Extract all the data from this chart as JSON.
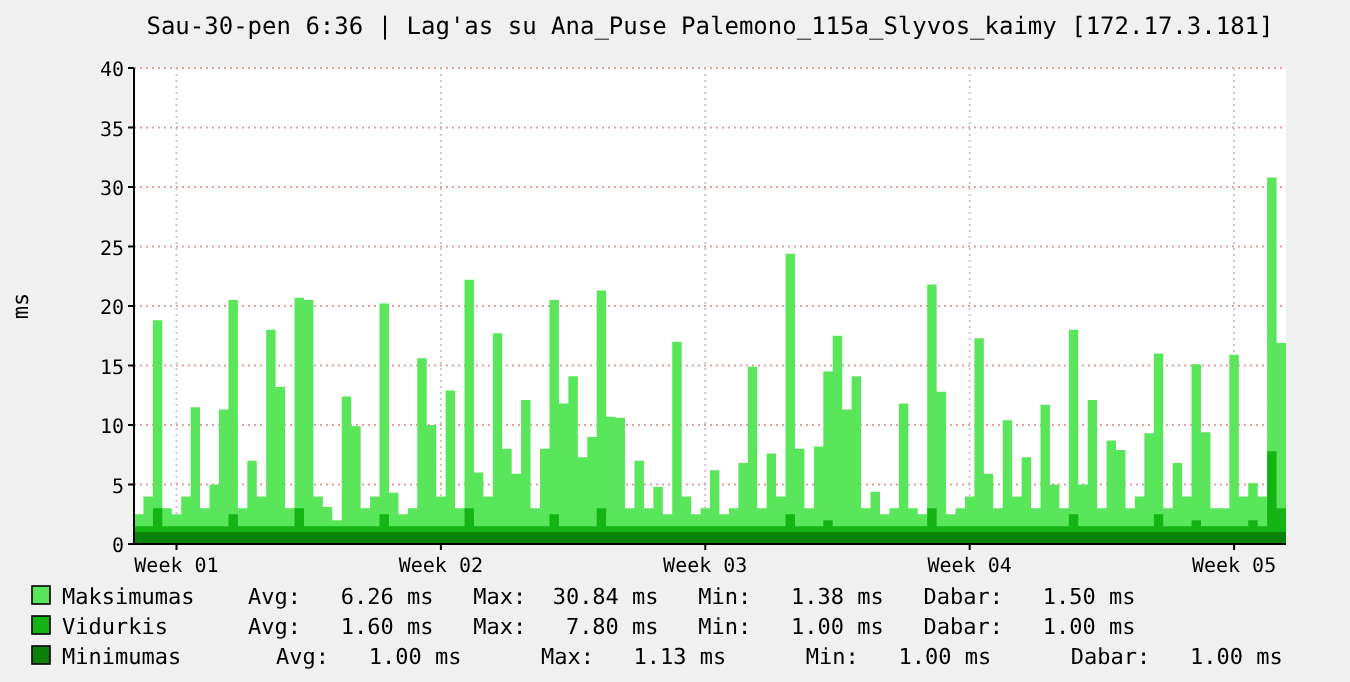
{
  "chart_data": {
    "type": "area",
    "title": "Sau-30-pen 6:36 | Lag'as su Ana_Puse Palemono_115a_Slyvos_kaimy [172.17.3.181]",
    "ylabel": "ms",
    "categories": [
      null,
      null,
      null,
      null,
      "Week 01",
      null,
      null,
      null,
      null,
      null,
      null,
      null,
      null,
      null,
      null,
      null,
      null,
      null,
      null,
      null,
      null,
      null,
      null,
      null,
      null,
      null,
      null,
      null,
      null,
      null,
      null,
      null,
      "Week 02",
      null,
      null,
      null,
      null,
      null,
      null,
      null,
      null,
      null,
      null,
      null,
      null,
      null,
      null,
      null,
      null,
      null,
      null,
      null,
      null,
      null,
      null,
      null,
      null,
      null,
      null,
      null,
      "Week 03",
      null,
      null,
      null,
      null,
      null,
      null,
      null,
      null,
      null,
      null,
      null,
      null,
      null,
      null,
      null,
      null,
      null,
      null,
      null,
      null,
      null,
      null,
      null,
      null,
      null,
      null,
      null,
      "Week 04",
      null,
      null,
      null,
      null,
      null,
      null,
      null,
      null,
      null,
      null,
      null,
      null,
      null,
      null,
      null,
      null,
      null,
      null,
      null,
      null,
      null,
      null,
      null,
      null,
      null,
      null,
      null,
      "Week 05",
      null,
      null,
      null,
      null,
      null
    ],
    "ylim": [
      0,
      40
    ],
    "yticks": [
      0,
      5,
      10,
      15,
      20,
      25,
      30,
      35,
      40
    ],
    "grid": true,
    "legend": "bottom",
    "series": [
      {
        "name": "Maksimumas",
        "color": "#5ae65a",
        "values": [
          2.5,
          4,
          18.8,
          3,
          2.5,
          4,
          11.5,
          3,
          5,
          11.3,
          20.5,
          3,
          7,
          4,
          18,
          13.2,
          3,
          20.7,
          20.5,
          4,
          3.1,
          2,
          12.4,
          9.9,
          3,
          4,
          20.2,
          4.3,
          2.5,
          3,
          15.6,
          10,
          4,
          12.9,
          3,
          22.2,
          6,
          4,
          17.7,
          8,
          5.9,
          12.1,
          3,
          8,
          20.5,
          11.8,
          14.1,
          7.3,
          9,
          21.3,
          10.7,
          10.6,
          3,
          7,
          3,
          4.8,
          2.5,
          17,
          4,
          2.5,
          3,
          6.2,
          2.5,
          3,
          6.8,
          14.9,
          3,
          7.6,
          4,
          24.4,
          8,
          3,
          8.2,
          14.5,
          17.5,
          11.3,
          14.1,
          3,
          4.4,
          2.5,
          3,
          11.8,
          3,
          2.5,
          21.8,
          12.8,
          2.5,
          3,
          4,
          17.3,
          5.9,
          3,
          10.4,
          4,
          7.3,
          3,
          11.7,
          5,
          3,
          18,
          5,
          12.1,
          3,
          8.7,
          7.9,
          3,
          4,
          9.3,
          16,
          3,
          6.8,
          4,
          15.1,
          9.4,
          3,
          3,
          15.9,
          4,
          5.1,
          4,
          30.8,
          16.9
        ]
      },
      {
        "name": "Vidurkis",
        "color": "#14b414",
        "values": [
          1.5,
          1.5,
          3,
          1.5,
          1.5,
          1.5,
          1.5,
          1.5,
          1.5,
          1.5,
          2.5,
          1.5,
          1.5,
          1.5,
          1.5,
          1.5,
          1.5,
          3,
          1.5,
          1.5,
          1.5,
          1.5,
          1.5,
          1.5,
          1.5,
          1.5,
          2.5,
          1.5,
          1.5,
          1.5,
          1.5,
          1.5,
          1.5,
          1.5,
          1.5,
          3,
          1.5,
          1.5,
          1.5,
          1.5,
          1.5,
          1.5,
          1.5,
          1.5,
          2.5,
          1.5,
          1.5,
          1.5,
          1.5,
          3,
          1.5,
          1.5,
          1.5,
          1.5,
          1.5,
          1.5,
          1.5,
          1.5,
          1.5,
          1.5,
          1.5,
          1.5,
          1.5,
          1.5,
          1.5,
          1.5,
          1.5,
          1.5,
          1.5,
          2.5,
          1.5,
          1.5,
          1.5,
          2,
          1.5,
          1.5,
          1.5,
          1.5,
          1.5,
          1.5,
          1.5,
          1.5,
          1.5,
          1.5,
          3,
          1.5,
          1.5,
          1.5,
          1.5,
          1.5,
          1.5,
          1.5,
          1.5,
          1.5,
          1.5,
          1.5,
          1.5,
          1.5,
          1.5,
          2.5,
          1.5,
          1.5,
          1.5,
          1.5,
          1.5,
          1.5,
          1.5,
          1.5,
          2.5,
          1.5,
          1.5,
          1.5,
          2,
          1.5,
          1.5,
          1.5,
          1.5,
          1.5,
          2,
          1.5,
          7.8,
          3
        ]
      },
      {
        "name": "Minimumas",
        "color": "#0a820a",
        "values": [
          1,
          1,
          1,
          1,
          1,
          1,
          1,
          1,
          1,
          1,
          1,
          1,
          1,
          1,
          1,
          1,
          1,
          1,
          1,
          1,
          1,
          1,
          1,
          1,
          1,
          1,
          1,
          1,
          1,
          1,
          1,
          1,
          1,
          1,
          1,
          1,
          1,
          1,
          1,
          1,
          1,
          1,
          1,
          1,
          1,
          1,
          1,
          1,
          1,
          1,
          1,
          1,
          1,
          1,
          1,
          1,
          1,
          1,
          1,
          1,
          1,
          1,
          1,
          1,
          1,
          1,
          1,
          1,
          1,
          1,
          1,
          1,
          1,
          1,
          1,
          1,
          1,
          1,
          1,
          1,
          1,
          1,
          1,
          1,
          1,
          1,
          1,
          1,
          1,
          1,
          1,
          1,
          1,
          1,
          1,
          1,
          1,
          1,
          1,
          1,
          1,
          1,
          1,
          1,
          1,
          1,
          1,
          1,
          1,
          1,
          1,
          1,
          1,
          1,
          1,
          1,
          1,
          1,
          1,
          1,
          1,
          1
        ]
      }
    ],
    "annotations": [
      "Avg:   6.26 ms   Max:  30.84 ms   Min:   1.38 ms   Dabar:   1.50 ms",
      "Avg:   1.60 ms   Max:   7.80 ms   Min:   1.00 ms   Dabar:   1.00 ms",
      "Avg:   1.00 ms      Max:   1.13 ms      Min:   1.00 ms      Dabar:   1.00 ms"
    ]
  }
}
